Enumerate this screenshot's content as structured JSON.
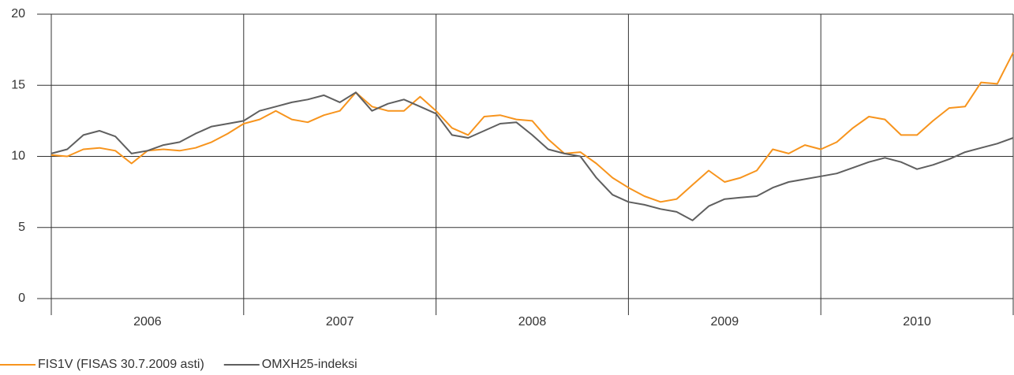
{
  "chart_data": {
    "type": "line",
    "categories": [
      "2006",
      "2007",
      "2008",
      "2009",
      "2010"
    ],
    "x": [
      2006,
      2006.083,
      2006.167,
      2006.25,
      2006.333,
      2006.417,
      2006.5,
      2006.583,
      2006.667,
      2006.75,
      2006.833,
      2006.917,
      2007,
      2007.083,
      2007.167,
      2007.25,
      2007.333,
      2007.417,
      2007.5,
      2007.583,
      2007.667,
      2007.75,
      2007.833,
      2007.917,
      2008,
      2008.083,
      2008.167,
      2008.25,
      2008.333,
      2008.417,
      2008.5,
      2008.583,
      2008.667,
      2008.75,
      2008.833,
      2008.917,
      2009,
      2009.083,
      2009.167,
      2009.25,
      2009.333,
      2009.417,
      2009.5,
      2009.583,
      2009.667,
      2009.75,
      2009.833,
      2009.917,
      2010,
      2010.083,
      2010.167,
      2010.25,
      2010.333,
      2010.417,
      2010.5,
      2010.583,
      2010.667,
      2010.75,
      2010.833,
      2010.917,
      2011
    ],
    "series": [
      {
        "name": "FIS1V (FISAS 30.7.2009 asti)",
        "color": "#f7941d",
        "values": [
          10.1,
          10.0,
          10.5,
          10.6,
          10.4,
          9.5,
          10.4,
          10.5,
          10.4,
          10.6,
          11.0,
          11.6,
          12.3,
          12.6,
          13.2,
          12.6,
          12.4,
          12.9,
          13.2,
          14.5,
          13.5,
          13.2,
          13.2,
          14.2,
          13.2,
          12.0,
          11.5,
          12.8,
          12.9,
          12.6,
          12.5,
          11.2,
          10.2,
          10.3,
          9.5,
          8.5,
          7.8,
          7.2,
          6.8,
          7.0,
          8.0,
          9.0,
          8.2,
          8.5,
          9.0,
          10.5,
          10.2,
          10.8,
          10.5,
          11.0,
          12.0,
          12.8,
          12.6,
          11.5,
          11.5,
          12.5,
          13.4,
          13.5,
          15.2,
          15.1,
          17.3
        ]
      },
      {
        "name": "OMXH25-indeksi",
        "color": "#5f5f5f",
        "values": [
          10.2,
          10.5,
          11.5,
          11.8,
          11.4,
          10.2,
          10.4,
          10.8,
          11.0,
          11.6,
          12.1,
          12.3,
          12.5,
          13.2,
          13.5,
          13.8,
          14.0,
          14.3,
          13.8,
          14.5,
          13.2,
          13.7,
          14.0,
          13.5,
          13.0,
          11.5,
          11.3,
          11.8,
          12.3,
          12.4,
          11.5,
          10.5,
          10.2,
          10.0,
          8.5,
          7.3,
          6.8,
          6.6,
          6.3,
          6.1,
          5.5,
          6.5,
          7.0,
          7.1,
          7.2,
          7.8,
          8.2,
          8.4,
          8.6,
          8.8,
          9.2,
          9.6,
          9.9,
          9.6,
          9.1,
          9.4,
          9.8,
          10.3,
          10.6,
          10.9,
          11.3
        ]
      }
    ],
    "xlim": [
      2006,
      2011
    ],
    "xticks": [
      2006,
      2007,
      2008,
      2009,
      2010,
      2011
    ],
    "ylim": [
      0,
      20
    ],
    "yticks": [
      0,
      5,
      10,
      15,
      20
    ],
    "grid": true,
    "legend": "bottom-left"
  }
}
